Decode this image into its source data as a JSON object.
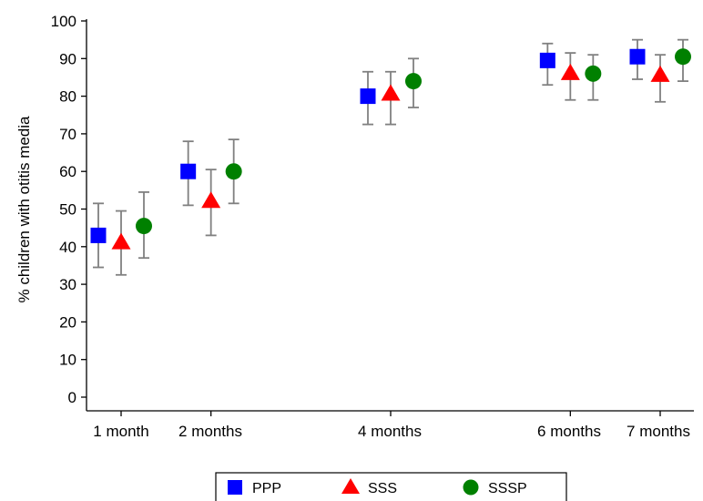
{
  "chart_data": {
    "type": "scatter",
    "ylabel": "% children with otitis media",
    "xlabel": "",
    "ylim": [
      0,
      100
    ],
    "yticks": [
      0,
      10,
      20,
      30,
      40,
      50,
      60,
      70,
      80,
      90,
      100
    ],
    "x_months": [
      1,
      2,
      4,
      6,
      7
    ],
    "categories": [
      "1 month",
      "2 months",
      "4 months",
      "6 months",
      "7 months"
    ],
    "grid": false,
    "legend_position": "bottom",
    "series": [
      {
        "name": "PPP",
        "marker": "square",
        "color": "#0000ff",
        "values": [
          43,
          60,
          80,
          89.5,
          90.5
        ],
        "ci_low": [
          34.5,
          51,
          72.5,
          83,
          84.5
        ],
        "ci_high": [
          51.5,
          68,
          86.5,
          94,
          95
        ]
      },
      {
        "name": "SSS",
        "marker": "triangle",
        "color": "#ff0000",
        "values": [
          41,
          52,
          80.5,
          86,
          85.5
        ],
        "ci_low": [
          32.5,
          43,
          72.5,
          79,
          78.5
        ],
        "ci_high": [
          49.5,
          60.5,
          86.5,
          91.5,
          91
        ]
      },
      {
        "name": "SSSP",
        "marker": "circle",
        "color": "#008000",
        "values": [
          45.5,
          60,
          84,
          86,
          90.5
        ],
        "ci_low": [
          37,
          51.5,
          77,
          79,
          84
        ],
        "ci_high": [
          54.5,
          68.5,
          90,
          91,
          95
        ]
      }
    ],
    "errorbar_color": "#808080"
  }
}
